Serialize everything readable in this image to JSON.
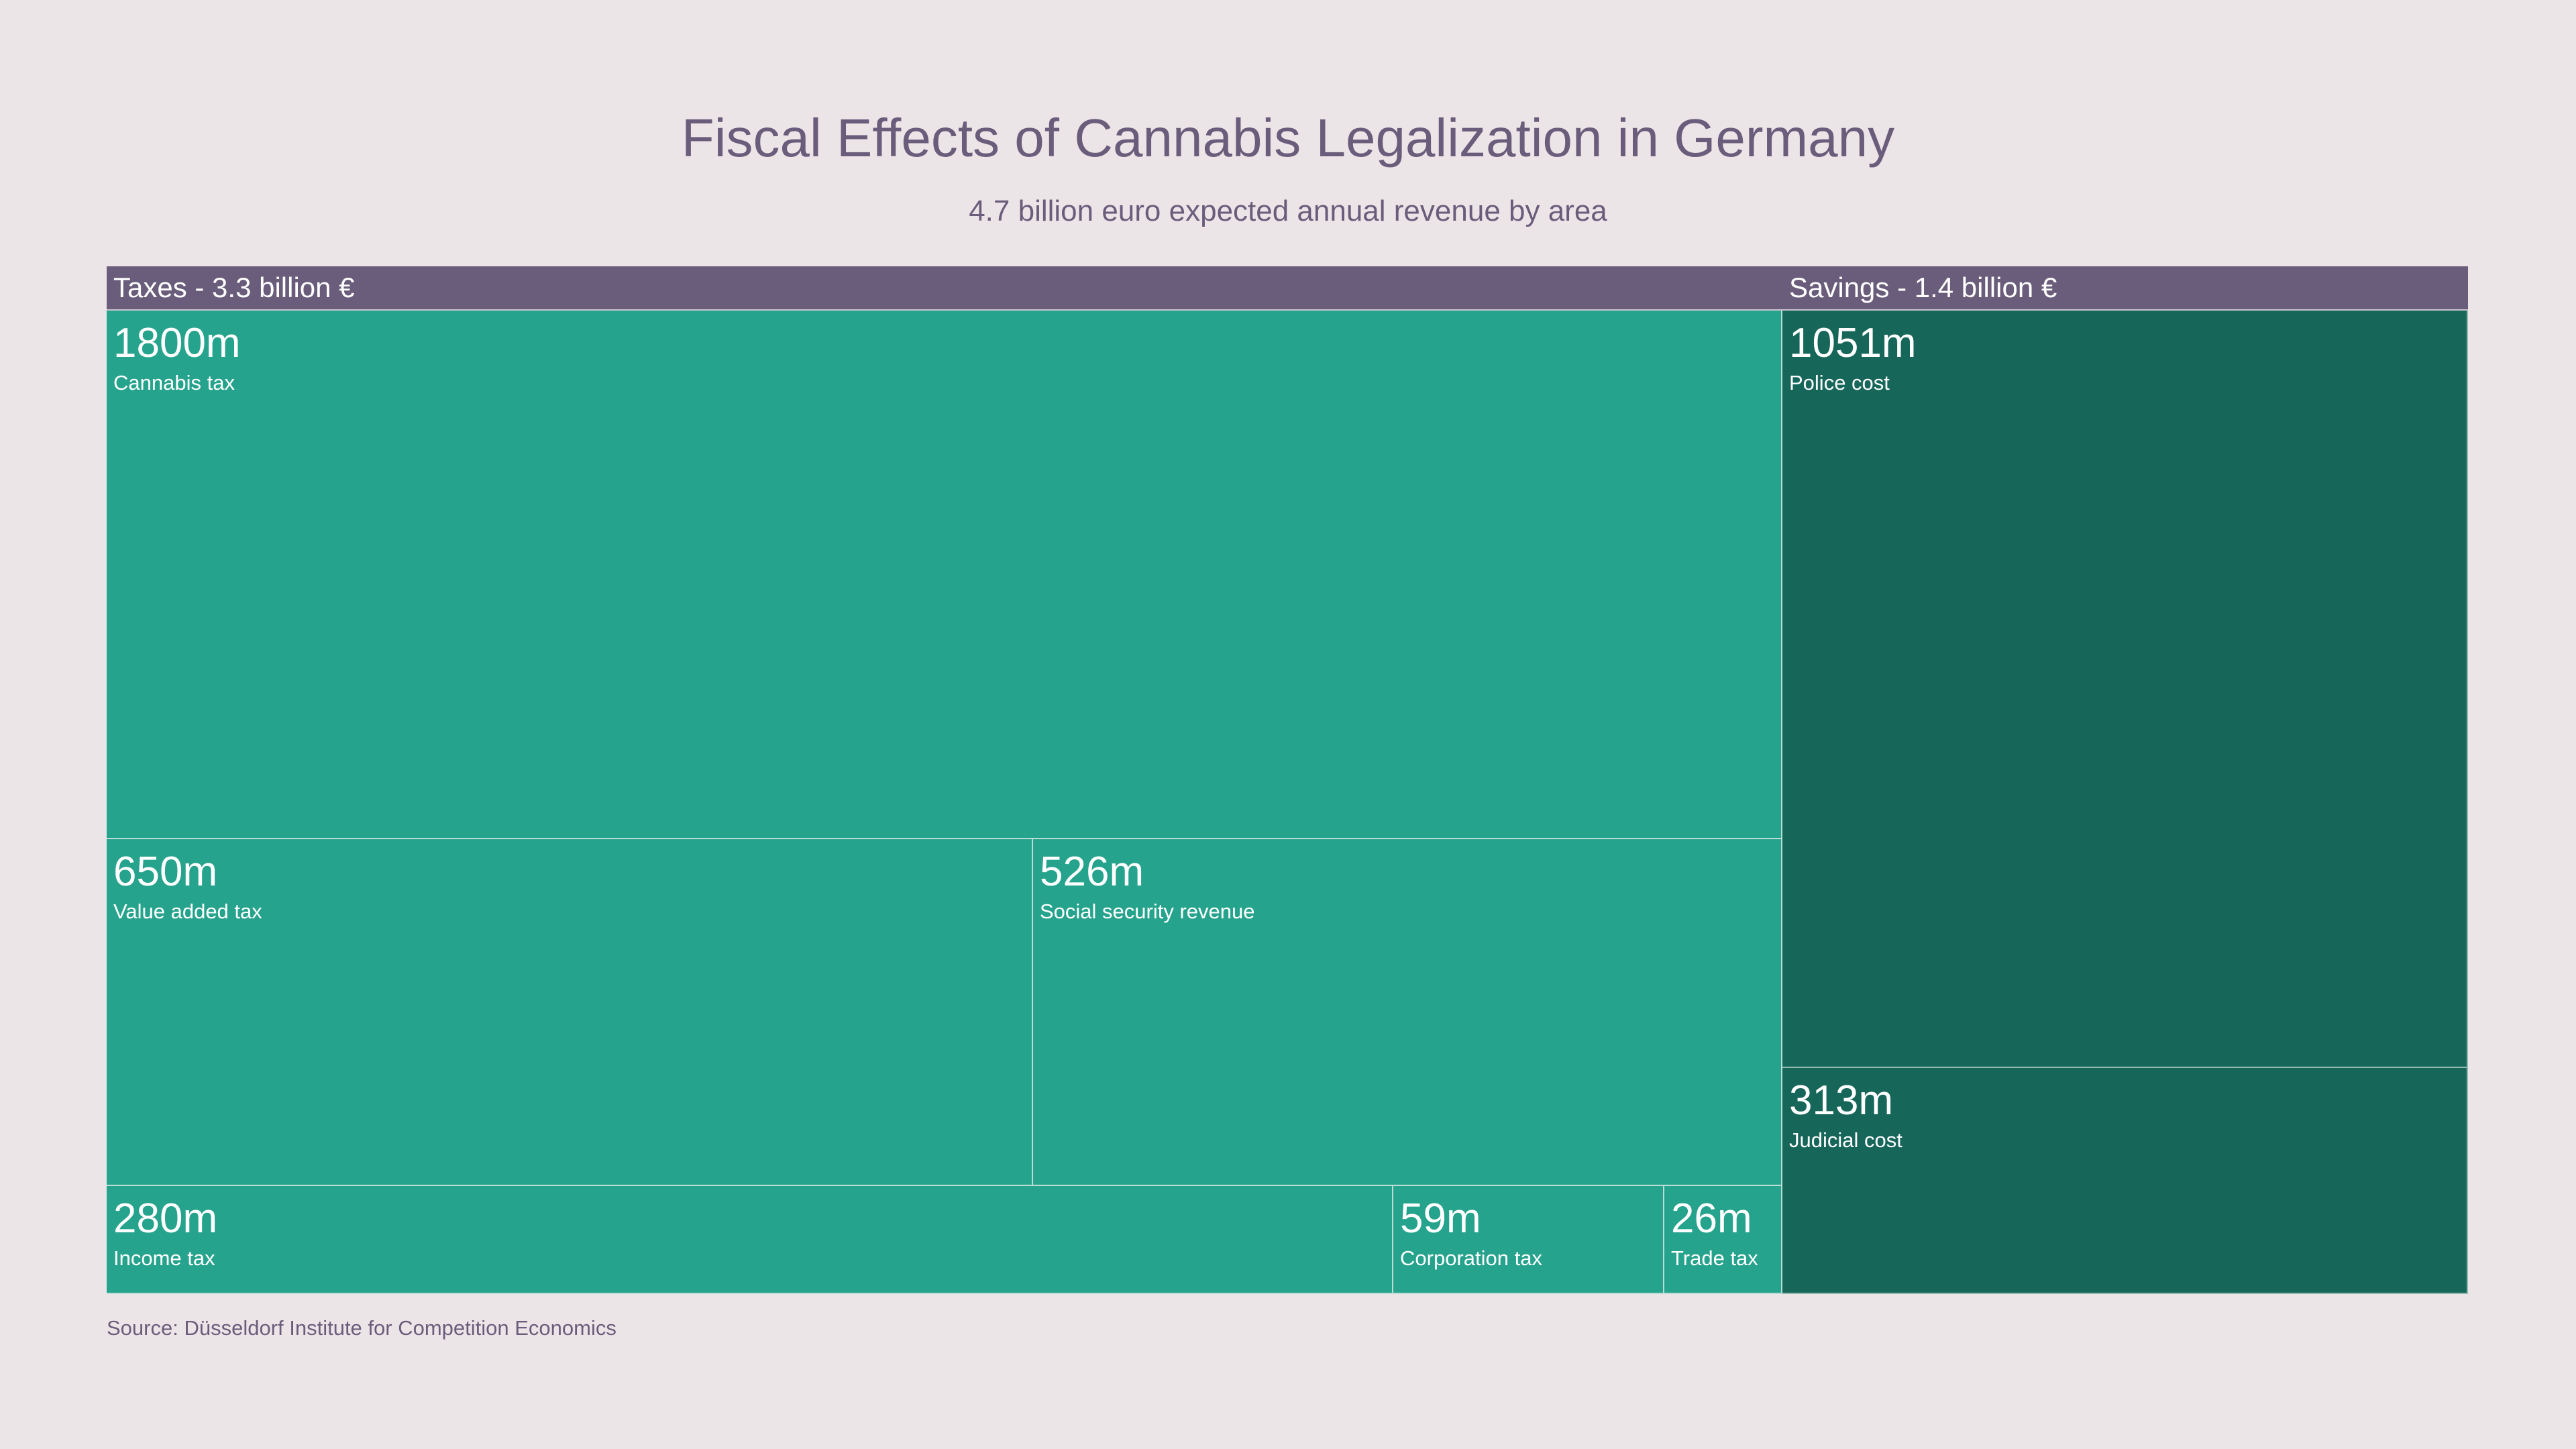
{
  "chart_data": {
    "type": "treemap",
    "title": "Fiscal Effects of Cannabis Legalization in Germany",
    "subtitle": "4.7 billion euro expected annual revenue by area",
    "source": "Source: Düsseldorf Institute for Competition Economics",
    "colors": {
      "background": "#ebe5e8",
      "group_header": "#6a5d7b",
      "taxes": "#26a38c",
      "savings": "#17665a"
    },
    "groups": [
      {
        "label": "Taxes - 3.3 billion €",
        "items": [
          {
            "value": 1800,
            "value_label": "1800m",
            "label": "Cannabis tax"
          },
          {
            "value": 650,
            "value_label": "650m",
            "label": "Value added tax"
          },
          {
            "value": 526,
            "value_label": "526m",
            "label": "Social security revenue"
          },
          {
            "value": 280,
            "value_label": "280m",
            "label": "Income tax"
          },
          {
            "value": 59,
            "value_label": "59m",
            "label": "Corporation tax"
          },
          {
            "value": 26,
            "value_label": "26m",
            "label": "Trade tax"
          }
        ]
      },
      {
        "label": "Savings - 1.4 billion €",
        "items": [
          {
            "value": 1051,
            "value_label": "1051m",
            "label": "Police cost"
          },
          {
            "value": 313,
            "value_label": "313m",
            "label": "Judicial cost"
          }
        ]
      }
    ]
  }
}
